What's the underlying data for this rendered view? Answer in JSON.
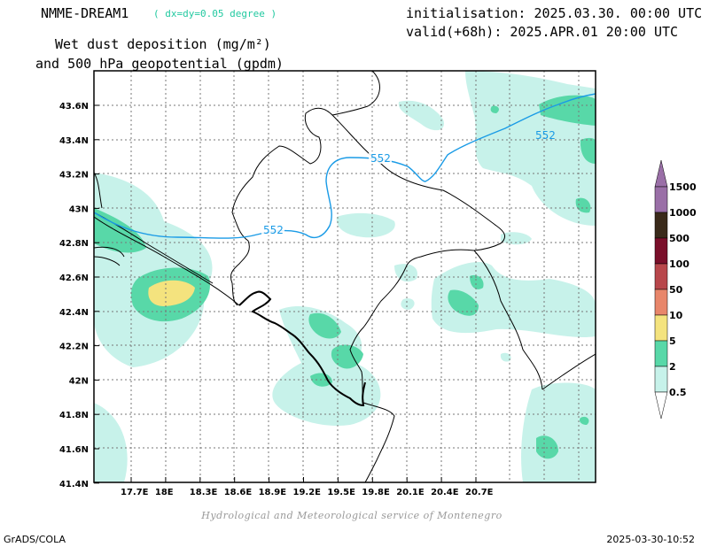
{
  "header": {
    "model": "NMME-DREAM1",
    "resolution": "( dx=dy=0.05 degree )",
    "title_line1": "Wet dust deposition (mg/m²)",
    "title_line2": "and 500 hPa geopotential (gpdm)",
    "init": "initialisation: 2025.03.30. 00:00 UTC",
    "valid": "valid(+68h): 2025.APR.01 20:00 UTC"
  },
  "axes": {
    "lat_labels": [
      "43.6N",
      "43.4N",
      "43.2N",
      "43N",
      "42.8N",
      "42.6N",
      "42.4N",
      "42.2N",
      "42N",
      "41.8N",
      "41.6N",
      "41.4N"
    ],
    "lon_labels": [
      "17.7E",
      "18E",
      "18.3E",
      "18.6E",
      "18.9E",
      "19.2E",
      "19.5E",
      "19.8E",
      "20.1E",
      "20.4E",
      "20.7E"
    ]
  },
  "contour": {
    "label": "552",
    "color": "#1a9be6"
  },
  "legend": {
    "levels": [
      "1500",
      "1000",
      "500",
      "100",
      "50",
      "10",
      "5",
      "2",
      "0.5"
    ],
    "colors": [
      "#9a6fa7",
      "#3a2a1a",
      "#7a0f2a",
      "#b8474b",
      "#e8866a",
      "#f4e37e",
      "#58d8a8",
      "#c7f2ea"
    ]
  },
  "colors": {
    "light": "#c7f2ea",
    "mid": "#58d8a8",
    "high": "#f4e37e"
  },
  "footer": {
    "credit": "Hydrological and Meteorological service of Montenegro",
    "software": "GrADS/COLA",
    "timestamp": "2025-03-30-10:52"
  }
}
